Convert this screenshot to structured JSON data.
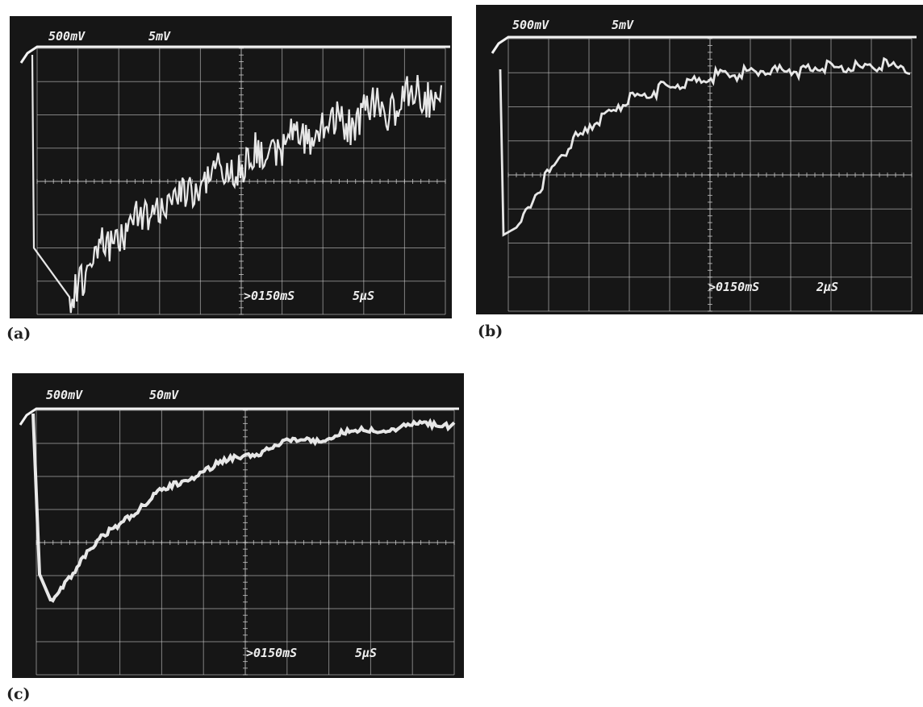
{
  "figure": {
    "panels": [
      {
        "id": "a",
        "label": "(a)",
        "ch1_scale": "500mV",
        "ch2_scale": "5mV",
        "trigger_delay": ">0150mS",
        "timebase": "5µS",
        "trace_style": "dense-noisy"
      },
      {
        "id": "b",
        "label": "(b)",
        "ch1_scale": "500mV",
        "ch2_scale": "5mV",
        "trigger_delay": ">0150mS",
        "timebase": "2µS",
        "trace_style": "sawtooth-saturating"
      },
      {
        "id": "c",
        "label": "(c)",
        "ch1_scale": "500mV",
        "ch2_scale": "50mV",
        "trigger_delay": ">0150mS",
        "timebase": "5µS",
        "trace_style": "smooth-recovery"
      }
    ],
    "colors": {
      "screen": "#161616",
      "graticule": "#d9d9d9",
      "trace": "#f2f2f2",
      "page": "#ffffff"
    }
  }
}
